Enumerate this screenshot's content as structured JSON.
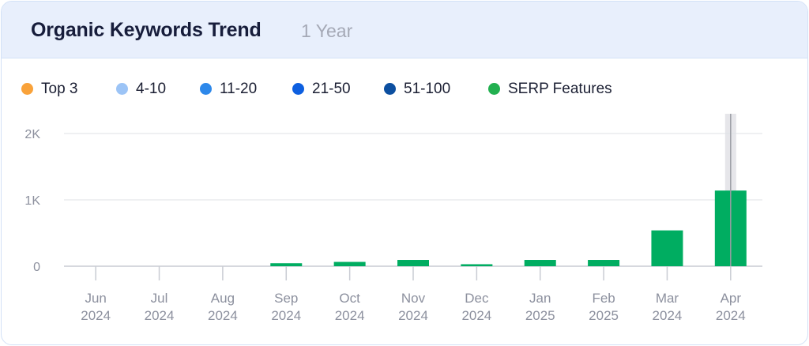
{
  "header": {
    "title": "Organic Keywords Trend",
    "subtitle": "1 Year"
  },
  "legend": [
    {
      "label": "Top 3",
      "color": "#f9a23a",
      "icon": "legend-dot"
    },
    {
      "label": "4-10",
      "color": "#9cc4f6",
      "icon": "legend-dot"
    },
    {
      "label": "11-20",
      "color": "#2d88ea",
      "icon": "legend-dot"
    },
    {
      "label": "21-50",
      "color": "#0d5fe0",
      "icon": "legend-dot"
    },
    {
      "label": "51-100",
      "color": "#0c4fa0",
      "icon": "legend-dot"
    },
    {
      "label": "SERP Features",
      "color": "#22b050",
      "icon": "legend-dot"
    }
  ],
  "chart_data": {
    "type": "bar",
    "categories": [
      [
        "Jun",
        "2024"
      ],
      [
        "Jul",
        "2024"
      ],
      [
        "Aug",
        "2024"
      ],
      [
        "Sep",
        "2024"
      ],
      [
        "Oct",
        "2024"
      ],
      [
        "Nov",
        "2024"
      ],
      [
        "Dec",
        "2024"
      ],
      [
        "Jan",
        "2025"
      ],
      [
        "Feb",
        "2025"
      ],
      [
        "Mar",
        "2024"
      ],
      [
        "Apr",
        "2024"
      ]
    ],
    "series": [
      {
        "name": "SERP Features",
        "color": "#00ad61",
        "values": [
          0,
          0,
          0,
          45,
          65,
          95,
          30,
          95,
          95,
          540,
          1140
        ]
      }
    ],
    "yticks": [
      {
        "value": 0,
        "label": "0"
      },
      {
        "value": 1000,
        "label": "1K"
      },
      {
        "value": 2000,
        "label": "2K"
      }
    ],
    "ylim": [
      0,
      2000
    ],
    "grid": true,
    "highlighted_category": 10,
    "legend_position": "top-left"
  }
}
